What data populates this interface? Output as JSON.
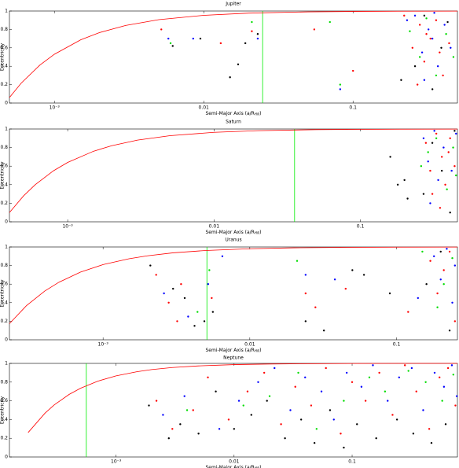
{
  "chart_data": [
    {
      "type": "scatter",
      "title": "Jupiter",
      "xlabel": [
        "Semi-Major Axis (a/R",
        "Hill",
        ")"
      ],
      "ylabel": "Eccentricity",
      "log_x": true,
      "xlim": [
        0.0005,
        0.5
      ],
      "ylim": [
        0,
        1
      ],
      "xticks": [
        {
          "value": 0.001,
          "label": "10⁻³"
        },
        0.01,
        0.1
      ],
      "yticks": [
        0,
        0.2,
        0.4,
        0.6,
        0.8,
        1
      ],
      "curve": {
        "color": "#ff0000",
        "x": [
          0.0005,
          0.0006,
          0.0008,
          0.001,
          0.0015,
          0.002,
          0.003,
          0.005,
          0.01,
          0.02,
          0.05,
          0.1,
          0.2,
          0.5
        ],
        "y": [
          0.06,
          0.217,
          0.413,
          0.53,
          0.687,
          0.765,
          0.843,
          0.906,
          0.953,
          0.977,
          0.991,
          0.995,
          0.998,
          0.999
        ]
      },
      "vline": {
        "x": 0.0248,
        "color": "#00ee00"
      },
      "series": [
        {
          "color": "#ff0000",
          "x": [
            0.0052,
            0.013,
            0.021,
            0.055,
            0.1,
            0.22,
            0.25,
            0.28,
            0.3,
            0.33,
            0.36,
            0.4,
            0.44,
            0.27,
            0.31,
            0.38
          ],
          "y": [
            0.8,
            0.65,
            0.78,
            0.8,
            0.35,
            0.95,
            0.6,
            0.85,
            0.45,
            0.7,
            0.9,
            0.3,
            0.65,
            0.2,
            0.75,
            0.55
          ]
        },
        {
          "color": "#0000ff",
          "x": [
            0.0058,
            0.0085,
            0.023,
            0.082,
            0.23,
            0.26,
            0.29,
            0.32,
            0.35,
            0.37,
            0.41,
            0.45,
            0.3,
            0.34
          ],
          "y": [
            0.7,
            0.7,
            0.7,
            0.15,
            0.9,
            0.95,
            0.55,
            0.8,
            0.98,
            0.4,
            0.85,
            0.6,
            0.25,
            0.7
          ]
        },
        {
          "color": "#00dd00",
          "x": [
            0.006,
            0.021,
            0.07,
            0.082,
            0.24,
            0.28,
            0.31,
            0.36,
            0.42,
            0.47
          ],
          "y": [
            0.65,
            0.88,
            0.88,
            0.2,
            0.78,
            0.5,
            0.92,
            0.3,
            0.75,
            0.5
          ]
        },
        {
          "color": "#000000",
          "x": [
            0.0062,
            0.0095,
            0.015,
            0.017,
            0.019,
            0.023,
            0.21,
            0.26,
            0.3,
            0.34,
            0.39,
            0.43
          ],
          "y": [
            0.62,
            0.7,
            0.28,
            0.42,
            0.65,
            0.75,
            0.25,
            0.4,
            0.95,
            0.15,
            0.6,
            0.88
          ]
        }
      ]
    },
    {
      "type": "scatter",
      "title": "Saturn",
      "xlabel": [
        "Semi-Major Axis (a/R",
        "Hill",
        ")"
      ],
      "ylabel": "Eccentricity",
      "log_x": true,
      "xlim": [
        0.0004,
        0.46
      ],
      "ylim": [
        0,
        1
      ],
      "xticks": [
        {
          "value": 0.001,
          "label": "10⁻³"
        },
        0.01,
        0.1
      ],
      "yticks": [
        0,
        0.2,
        0.4,
        0.6,
        0.8,
        1
      ],
      "curve": {
        "color": "#ff0000",
        "x": [
          0.0004,
          0.0005,
          0.0006,
          0.0008,
          0.001,
          0.0015,
          0.002,
          0.003,
          0.005,
          0.01,
          0.02,
          0.05,
          0.1,
          0.2,
          0.46
        ],
        "y": [
          0.1,
          0.28,
          0.4,
          0.55,
          0.64,
          0.76,
          0.82,
          0.88,
          0.928,
          0.964,
          0.982,
          0.993,
          0.996,
          0.998,
          0.999
        ]
      },
      "vline": {
        "x": 0.0355,
        "color": "#00ee00"
      },
      "series": [
        {
          "color": "#ff0000",
          "x": [
            0.28,
            0.3,
            0.33,
            0.36,
            0.38,
            0.41,
            0.44,
            0.31,
            0.35,
            0.4
          ],
          "y": [
            0.85,
            0.55,
            0.95,
            0.7,
            0.4,
            0.9,
            0.6,
            0.3,
            0.15,
            0.75
          ]
        },
        {
          "color": "#0000ff",
          "x": [
            0.27,
            0.29,
            0.32,
            0.34,
            0.37,
            0.42,
            0.45,
            0.3
          ],
          "y": [
            0.9,
            0.65,
            0.98,
            0.45,
            0.8,
            0.55,
            0.95,
            0.2
          ]
        },
        {
          "color": "#00dd00",
          "x": [
            0.26,
            0.29,
            0.33,
            0.39,
            0.43,
            0.45
          ],
          "y": [
            0.6,
            0.75,
            0.9,
            0.35,
            0.8,
            0.5
          ]
        },
        {
          "color": "#000000",
          "x": [
            0.16,
            0.18,
            0.2,
            0.21,
            0.27,
            0.31,
            0.36,
            0.41,
            0.44
          ],
          "y": [
            0.7,
            0.4,
            0.45,
            0.25,
            0.3,
            0.85,
            0.55,
            0.1,
            0.98
          ]
        }
      ]
    },
    {
      "type": "scatter",
      "title": "Uranus",
      "xlabel": [
        "Semi-Major Axis (a/R",
        "Hill",
        ")"
      ],
      "ylabel": "Eccentricity",
      "log_x": true,
      "xlim": [
        0.00023,
        0.26
      ],
      "ylim": [
        0,
        1
      ],
      "xticks": [
        {
          "value": 0.001,
          "label": "10⁻³"
        },
        0.01,
        0.1
      ],
      "yticks": [
        0,
        0.2,
        0.4,
        0.6,
        0.8,
        1
      ],
      "curve": {
        "color": "#ff0000",
        "x": [
          0.00023,
          0.0003,
          0.0004,
          0.0005,
          0.0007,
          0.001,
          0.0015,
          0.002,
          0.003,
          0.005,
          0.01,
          0.02,
          0.05,
          0.1,
          0.26
        ],
        "y": [
          0.174,
          0.367,
          0.525,
          0.62,
          0.729,
          0.81,
          0.873,
          0.905,
          0.937,
          0.962,
          0.981,
          0.991,
          0.996,
          0.998,
          0.999
        ]
      },
      "vline": {
        "x": 0.0051,
        "color": "#00ee00"
      },
      "series": [
        {
          "color": "#ff0000",
          "x": [
            0.0023,
            0.0028,
            0.0032,
            0.0034,
            0.0055,
            0.024,
            0.028,
            0.045,
            0.12,
            0.17,
            0.19,
            0.21,
            0.23,
            0.25
          ],
          "y": [
            0.7,
            0.4,
            0.2,
            0.6,
            0.45,
            0.5,
            0.35,
            0.55,
            0.3,
            0.85,
            0.5,
            0.75,
            0.95,
            0.2
          ]
        },
        {
          "color": "#0000ff",
          "x": [
            0.0026,
            0.0038,
            0.0052,
            0.0065,
            0.024,
            0.038,
            0.14,
            0.18,
            0.2,
            0.22,
            0.24,
            0.25
          ],
          "y": [
            0.5,
            0.25,
            0.6,
            0.9,
            0.7,
            0.65,
            0.45,
            0.9,
            0.65,
            0.98,
            0.4,
            0.8
          ]
        },
        {
          "color": "#00dd00",
          "x": [
            0.0044,
            0.0053,
            0.021,
            0.15,
            0.19,
            0.21,
            0.24
          ],
          "y": [
            0.3,
            0.75,
            0.85,
            0.95,
            0.35,
            0.6,
            0.88
          ]
        },
        {
          "color": "#000000",
          "x": [
            0.0021,
            0.003,
            0.0036,
            0.0042,
            0.0049,
            0.0056,
            0.024,
            0.032,
            0.05,
            0.06,
            0.09,
            0.16,
            0.2,
            0.23
          ],
          "y": [
            0.8,
            0.55,
            0.45,
            0.15,
            0.2,
            0.3,
            0.2,
            0.1,
            0.75,
            0.7,
            0.5,
            0.6,
            0.95,
            0.1
          ]
        }
      ]
    },
    {
      "type": "scatter",
      "title": "Neptune",
      "xlabel": [
        "Semi-Major Axis (a/R",
        "Hill",
        ")"
      ],
      "ylabel": "Eccentricity",
      "log_x": true,
      "xlim": [
        0.000125,
        0.78
      ],
      "ylim": [
        0,
        1
      ],
      "xticks": [
        {
          "value": 0.001,
          "label": "10⁻³"
        },
        0.01,
        0.1
      ],
      "yticks": [
        0,
        0.2,
        0.4,
        0.6,
        0.8,
        1
      ],
      "curve": {
        "color": "#ff0000",
        "x": [
          0.00018,
          0.00025,
          0.0003,
          0.0004,
          0.0005,
          0.0007,
          0.001,
          0.0015,
          0.002,
          0.003,
          0.005,
          0.01,
          0.02,
          0.05,
          0.1,
          0.3,
          0.78
        ],
        "y": [
          0.261,
          0.468,
          0.557,
          0.668,
          0.734,
          0.81,
          0.867,
          0.911,
          0.934,
          0.956,
          0.973,
          0.987,
          0.993,
          0.997,
          0.999,
          1.0,
          1.0
        ]
      },
      "vline": {
        "x": 0.00056,
        "color": "#00ee00"
      },
      "series": [
        {
          "color": "#ff0000",
          "x": [
            0.0022,
            0.003,
            0.0045,
            0.006,
            0.009,
            0.013,
            0.018,
            0.025,
            0.033,
            0.045,
            0.06,
            0.08,
            0.1,
            0.13,
            0.17,
            0.22,
            0.28,
            0.35,
            0.45,
            0.55,
            0.65,
            0.75
          ],
          "y": [
            0.6,
            0.3,
            0.5,
            0.85,
            0.4,
            0.7,
            0.9,
            0.35,
            0.75,
            0.55,
            0.95,
            0.25,
            0.8,
            0.6,
            0.9,
            0.45,
            0.98,
            0.7,
            0.3,
            0.85,
            0.95,
            0.55
          ]
        },
        {
          "color": "#0000ff",
          "x": [
            0.0025,
            0.0038,
            0.0075,
            0.011,
            0.016,
            0.022,
            0.03,
            0.04,
            0.055,
            0.07,
            0.09,
            0.12,
            0.15,
            0.2,
            0.25,
            0.32,
            0.4,
            0.5,
            0.6,
            0.7,
            0.77
          ],
          "y": [
            0.45,
            0.65,
            0.3,
            0.6,
            0.8,
            0.95,
            0.5,
            0.85,
            0.7,
            0.4,
            0.9,
            0.75,
            0.98,
            0.6,
            0.85,
            0.95,
            0.5,
            0.9,
            0.75,
            0.98,
            0.65
          ]
        },
        {
          "color": "#00dd00",
          "x": [
            0.004,
            0.012,
            0.02,
            0.035,
            0.05,
            0.085,
            0.14,
            0.19,
            0.3,
            0.42,
            0.58,
            0.72
          ],
          "y": [
            0.5,
            0.55,
            0.65,
            0.9,
            0.3,
            0.6,
            0.85,
            0.7,
            0.92,
            0.8,
            0.6,
            0.88
          ]
        },
        {
          "color": "#000000",
          "x": [
            0.0019,
            0.0028,
            0.0035,
            0.005,
            0.007,
            0.01,
            0.014,
            0.019,
            0.027,
            0.037,
            0.048,
            0.065,
            0.085,
            0.11,
            0.16,
            0.24,
            0.33,
            0.47,
            0.62
          ],
          "y": [
            0.55,
            0.2,
            0.35,
            0.25,
            0.7,
            0.3,
            0.45,
            0.6,
            0.2,
            0.4,
            0.15,
            0.5,
            0.1,
            0.35,
            0.2,
            0.4,
            0.25,
            0.15,
            0.35
          ]
        }
      ]
    }
  ]
}
